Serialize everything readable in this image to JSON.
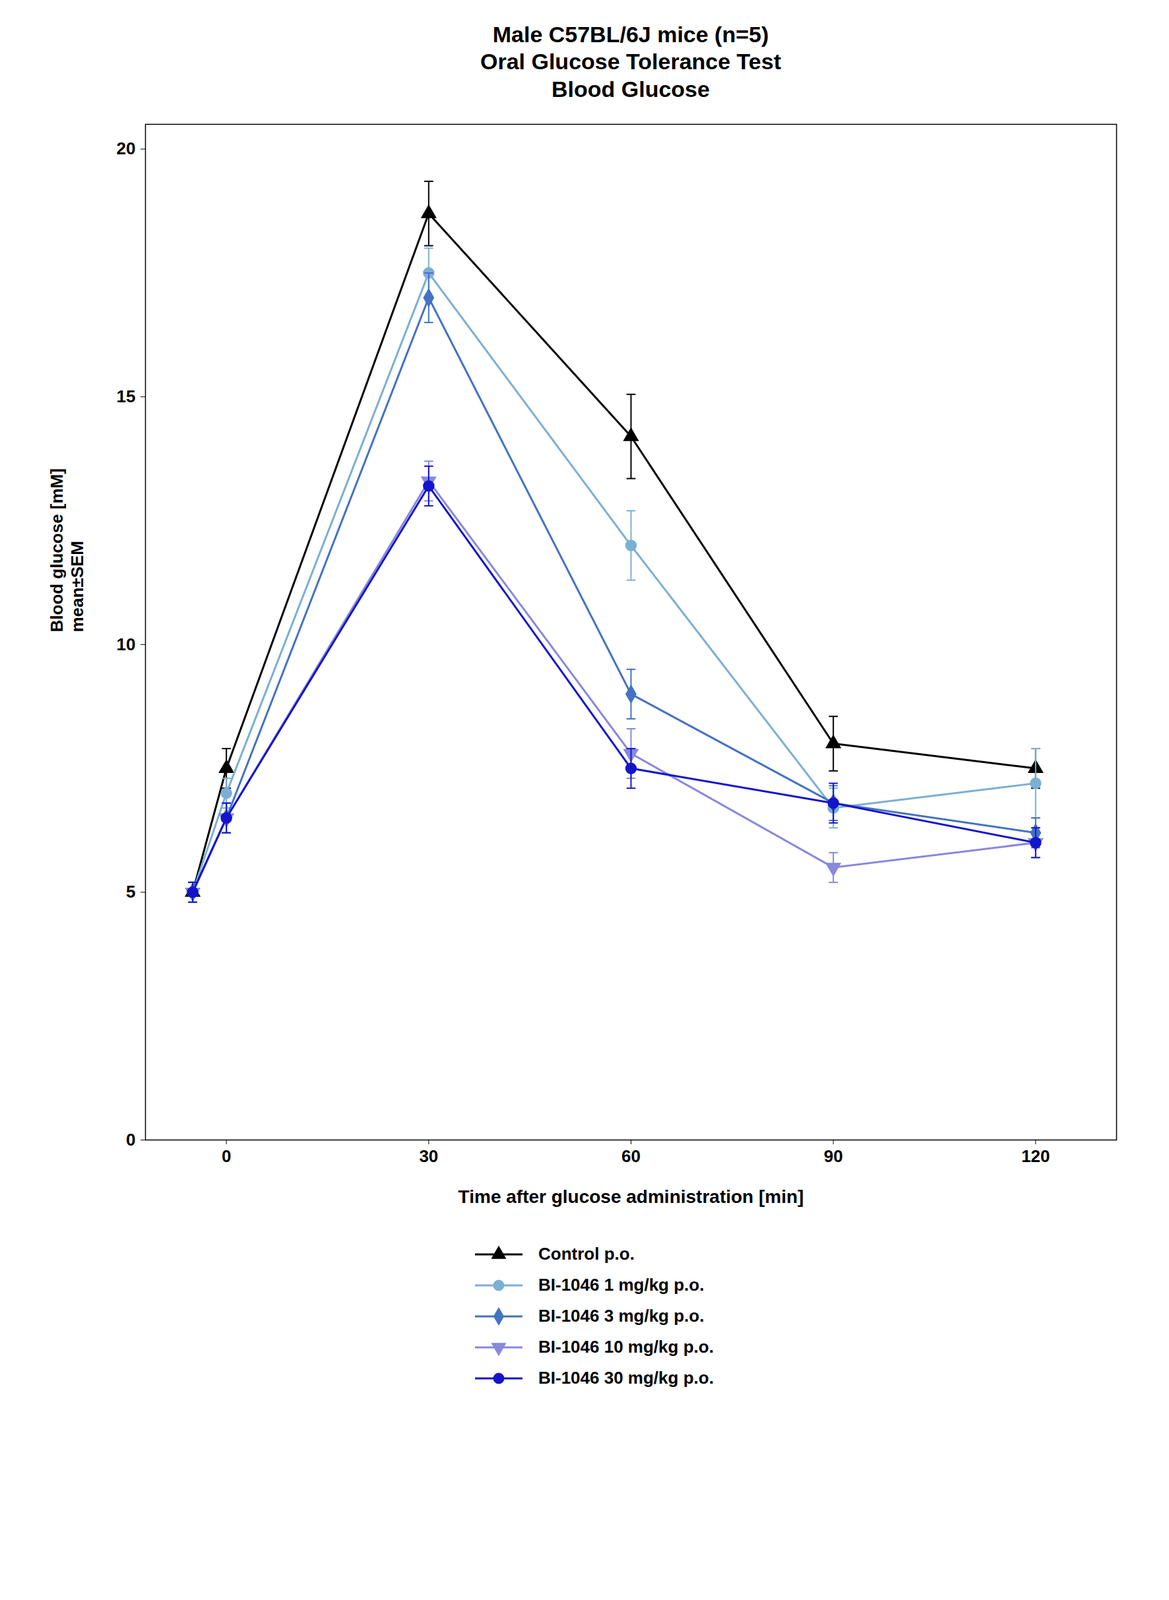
{
  "chart_data": {
    "type": "line",
    "title": "Male C57BL/6J mice (n=5)\nOral  Glucose Tolerance Test\nBlood Glucose",
    "xlabel": "Time after glucose administration [min]",
    "ylabel": "Blood glucose [mM]\nmean±SEM",
    "x": [
      -5,
      0,
      30,
      60,
      90,
      120
    ],
    "xlim": [
      -12,
      132
    ],
    "xticks": [
      0,
      30,
      60,
      90,
      120
    ],
    "ylim": [
      0,
      20.5
    ],
    "yticks": [
      0,
      5,
      10,
      15,
      20
    ],
    "grid": false,
    "legend": "bottom",
    "series": [
      {
        "name": "Control p.o.",
        "color": "#000000",
        "marker": "triangle-up",
        "values": [
          5.0,
          7.5,
          18.7,
          14.2,
          8.0,
          7.5
        ],
        "errors": [
          0.2,
          0.4,
          0.65,
          0.85,
          0.55,
          0.4
        ]
      },
      {
        "name": "BI-1046  1 mg/kg p.o.",
        "color": "#7bafd4",
        "marker": "circle",
        "values": [
          5.0,
          7.0,
          17.5,
          12.0,
          6.7,
          7.2
        ],
        "errors": [
          0.2,
          0.3,
          0.5,
          0.7,
          0.4,
          0.7
        ]
      },
      {
        "name": "BI-1046  3 mg/kg p.o.",
        "color": "#4472c4",
        "marker": "diamond",
        "values": [
          5.0,
          6.5,
          17.0,
          9.0,
          6.8,
          6.2
        ],
        "errors": [
          0.2,
          0.3,
          0.5,
          0.5,
          0.35,
          0.3
        ]
      },
      {
        "name": "BI-1046  10 mg/kg p.o.",
        "color": "#8888dd",
        "marker": "triangle-down",
        "values": [
          5.0,
          6.5,
          13.3,
          7.8,
          5.5,
          6.0
        ],
        "errors": [
          0.2,
          0.3,
          0.4,
          0.5,
          0.3,
          0.3
        ]
      },
      {
        "name": "BI-1046  30 mg/kg p.o.",
        "color": "#1414cc",
        "marker": "circle",
        "values": [
          5.0,
          6.5,
          13.2,
          7.5,
          6.8,
          6.0
        ],
        "errors": [
          0.2,
          0.3,
          0.4,
          0.4,
          0.4,
          0.3
        ]
      }
    ]
  }
}
